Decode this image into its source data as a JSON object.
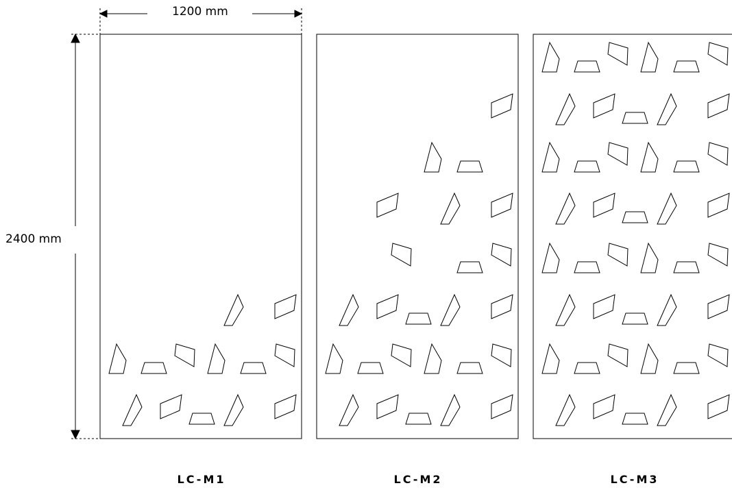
{
  "dimensions": {
    "width_label": "1200 mm",
    "height_label": "2400 mm"
  },
  "panels": [
    {
      "name": "LC-M1"
    },
    {
      "name": "LC-M2"
    },
    {
      "name": "LC-M3"
    }
  ]
}
